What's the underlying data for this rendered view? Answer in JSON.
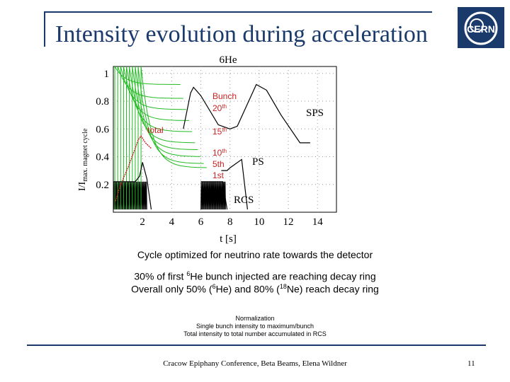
{
  "slide": {
    "title": "Intensity evolution during acceleration",
    "caption": "Cycle optimized for neutrino rate towards the detector",
    "note_line1_pre": "30% of first ",
    "note_line1_sup": "6",
    "note_line1_post": "He bunch injected are reaching decay ring",
    "note_line2_a": "Overall only 50% (",
    "note_line2_sup1": "6",
    "note_line2_b": "He) and 80% (",
    "note_line2_sup2": "18",
    "note_line2_c": "Ne) reach decay ring",
    "normalization": {
      "heading": "Normalization",
      "line1": "Single bunch intensity to maximum/bunch",
      "line2": "Total intensity to total number accumulated in RCS"
    },
    "footer": "Cracow Epiphany Conference, Beta Beams, Elena Wildner",
    "page_number": "11"
  },
  "logo": {
    "text": "CERN",
    "color": "#1a3a6b"
  },
  "colors": {
    "frame": "#1a3a6b",
    "bunch": "#22bb22",
    "total": "#cc2222",
    "cycle": "#000000"
  },
  "chart_data": {
    "type": "line",
    "title": "6He",
    "xlabel": "t [s]",
    "ylabel_main": "I/I",
    "ylabel_sub": "max. magnet cycle",
    "xlim": [
      0,
      15.3
    ],
    "ylim": [
      0,
      1.05
    ],
    "x_ticks": [
      "2",
      "4",
      "6",
      "8",
      "10",
      "12",
      "14"
    ],
    "y_ticks": [
      "0.2",
      "0.4",
      "0.6",
      "0.8",
      "1"
    ],
    "labels": {
      "bunch": "Bunch",
      "n20": "20",
      "n15": "15",
      "th": "th",
      "n10": "10",
      "n5": "5th",
      "n1": "1st",
      "total": "total",
      "sps": "SPS",
      "ps": "PS",
      "rcs": "RCS"
    },
    "magnet_cycle": {
      "x": [
        4.8,
        5.3,
        5.5,
        6.0,
        7.2,
        8.0,
        8.5,
        9.8,
        10.5,
        11.5,
        12.8,
        13.5
      ],
      "y": [
        0.6,
        0.86,
        0.9,
        0.84,
        0.63,
        0.6,
        0.62,
        0.92,
        0.88,
        0.7,
        0.5,
        0.5
      ]
    },
    "ps_cycle": {
      "x": [
        7.4,
        7.8,
        8.0,
        8.8,
        9.2
      ],
      "y": [
        0.3,
        0.3,
        0.32,
        0.38,
        0.02
      ]
    },
    "total_intensity": {
      "x": [
        0.15,
        0.5,
        1.0,
        1.5,
        1.7,
        1.9,
        2.2,
        2.4,
        2.6
      ],
      "y": [
        0.08,
        0.2,
        0.32,
        0.46,
        0.52,
        0.55,
        0.5,
        0.48,
        0.46
      ]
    },
    "bunch_injection_times": [
      0.1,
      0.3,
      0.5,
      0.7,
      0.9,
      1.1,
      1.3,
      1.5,
      1.7,
      1.9
    ],
    "rcs_cycles": [
      {
        "x": [
          0.0,
          0.25,
          0.5,
          1.0,
          1.5,
          1.8,
          2.0,
          2.3,
          2.6
        ],
        "y": [
          0.22,
          0.22,
          0.22,
          0.22,
          0.22,
          0.26,
          0.36,
          0.24,
          0.02
        ]
      },
      {
        "x": [
          6.0,
          6.5,
          7.0,
          7.5,
          7.8
        ],
        "y": [
          0.22,
          0.22,
          0.22,
          0.22,
          0.02
        ]
      }
    ]
  }
}
